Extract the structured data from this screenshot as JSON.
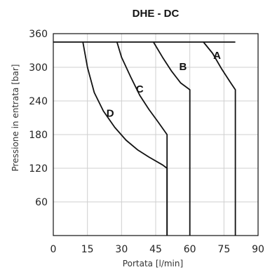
{
  "chart_data": {
    "type": "line",
    "title": "DHE - DC",
    "xlabel": "Portata [l/min]",
    "ylabel": "Pressione in entrata [bar]",
    "xlim": [
      0,
      90
    ],
    "ylim": [
      0,
      360
    ],
    "xticks": [
      0,
      15,
      30,
      45,
      60,
      75,
      90
    ],
    "yticks": [
      60,
      120,
      180,
      240,
      300,
      360
    ],
    "grid": true,
    "series": [
      {
        "name": "A",
        "x": [
          66,
          70,
          74,
          78,
          80,
          80
        ],
        "y": [
          345,
          325,
          297,
          272,
          260,
          0
        ]
      },
      {
        "name": "B",
        "x": [
          44,
          48,
          52,
          56,
          60,
          60
        ],
        "y": [
          345,
          318,
          293,
          272,
          260,
          0
        ]
      },
      {
        "name": "C",
        "x": [
          28,
          30,
          34,
          38,
          42,
          46,
          50,
          50
        ],
        "y": [
          345,
          318,
          283,
          250,
          225,
          203,
          180,
          0
        ]
      },
      {
        "name": "D",
        "x": [
          13,
          15,
          18,
          22,
          27,
          32,
          37,
          42,
          48,
          50,
          50
        ],
        "y": [
          345,
          300,
          255,
          222,
          193,
          170,
          153,
          140,
          126,
          120,
          0
        ]
      }
    ],
    "cap_line": {
      "y": 345,
      "x": [
        0,
        80
      ]
    }
  }
}
